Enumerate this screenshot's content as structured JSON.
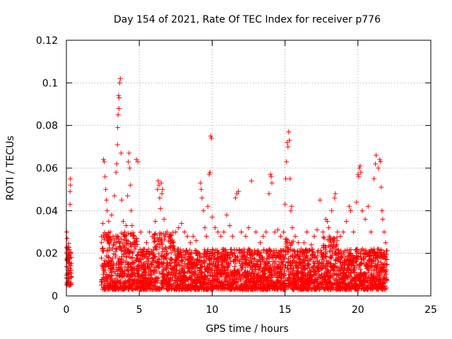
{
  "chart_data": {
    "type": "scatter",
    "title": "Day 154 of 2021, Rate Of TEC Index for receiver p776",
    "xlabel": "GPS time / hours",
    "ylabel": "ROTI / TECUs",
    "xlim": [
      0,
      25
    ],
    "ylim": [
      0,
      0.12
    ],
    "x_ticks": [
      0,
      5,
      10,
      15,
      20,
      25
    ],
    "y_ticks": [
      0,
      0.02,
      0.04,
      0.06,
      0.08,
      0.1,
      0.12
    ],
    "x_tick_labels": [
      "0",
      "5",
      "10",
      "15",
      "20",
      "25"
    ],
    "y_tick_labels": [
      "0",
      "0.02",
      "0.04",
      "0.06",
      "0.08",
      "0.1",
      "0.12"
    ],
    "grid": true,
    "marker": "+",
    "color": "#ff0000",
    "series": [
      {
        "name": "ROTI",
        "points": [
          [
            0.02,
            0.03
          ],
          [
            0.05,
            0.027
          ],
          [
            0.08,
            0.022
          ],
          [
            0.1,
            0.018
          ],
          [
            0.12,
            0.012
          ],
          [
            0.15,
            0.008
          ],
          [
            0.18,
            0.006
          ],
          [
            0.2,
            0.01
          ],
          [
            0.22,
            0.015
          ],
          [
            0.25,
            0.043
          ],
          [
            0.25,
            0.049
          ],
          [
            0.27,
            0.055
          ],
          [
            0.28,
            0.052
          ],
          [
            0.3,
            0.02
          ],
          [
            0.32,
            0.012
          ],
          [
            0.35,
            0.009
          ],
          [
            2.5,
            0.034
          ],
          [
            2.55,
            0.064
          ],
          [
            2.6,
            0.063
          ],
          [
            2.65,
            0.056
          ],
          [
            2.7,
            0.05
          ],
          [
            2.75,
            0.045
          ],
          [
            2.8,
            0.04
          ],
          [
            2.9,
            0.035
          ],
          [
            3.0,
            0.03
          ],
          [
            3.1,
            0.038
          ],
          [
            3.2,
            0.028
          ],
          [
            3.3,
            0.047
          ],
          [
            3.4,
            0.058
          ],
          [
            3.45,
            0.062
          ],
          [
            3.5,
            0.071
          ],
          [
            3.52,
            0.079
          ],
          [
            3.55,
            0.085
          ],
          [
            3.58,
            0.094
          ],
          [
            3.6,
            0.088
          ],
          [
            3.62,
            0.093
          ],
          [
            3.65,
            0.1
          ],
          [
            3.7,
            0.102
          ],
          [
            3.75,
            0.067
          ],
          [
            3.8,
            0.045
          ],
          [
            3.9,
            0.035
          ],
          [
            4.0,
            0.03
          ],
          [
            4.1,
            0.033
          ],
          [
            4.2,
            0.047
          ],
          [
            4.25,
            0.063
          ],
          [
            4.3,
            0.067
          ],
          [
            4.35,
            0.06
          ],
          [
            4.4,
            0.052
          ],
          [
            4.45,
            0.04
          ],
          [
            4.5,
            0.033
          ],
          [
            4.6,
            0.028
          ],
          [
            4.7,
            0.025
          ],
          [
            4.8,
            0.064
          ],
          [
            4.9,
            0.063
          ],
          [
            5.1,
            0.03
          ],
          [
            5.3,
            0.022
          ],
          [
            5.5,
            0.025
          ],
          [
            5.7,
            0.03
          ],
          [
            5.9,
            0.028
          ],
          [
            6.1,
            0.035
          ],
          [
            6.25,
            0.05
          ],
          [
            6.3,
            0.054
          ],
          [
            6.35,
            0.052
          ],
          [
            6.4,
            0.046
          ],
          [
            6.45,
            0.041
          ],
          [
            6.5,
            0.053
          ],
          [
            6.55,
            0.048
          ],
          [
            6.6,
            0.05
          ],
          [
            6.7,
            0.036
          ],
          [
            6.9,
            0.03
          ],
          [
            7.1,
            0.028
          ],
          [
            7.3,
            0.025
          ],
          [
            7.5,
            0.03
          ],
          [
            7.7,
            0.032
          ],
          [
            7.9,
            0.034
          ],
          [
            8.1,
            0.03
          ],
          [
            8.3,
            0.028
          ],
          [
            8.5,
            0.025
          ],
          [
            8.7,
            0.028
          ],
          [
            8.9,
            0.026
          ],
          [
            9.2,
            0.053
          ],
          [
            9.25,
            0.05
          ],
          [
            9.3,
            0.046
          ],
          [
            9.4,
            0.04
          ],
          [
            9.5,
            0.032
          ],
          [
            9.6,
            0.028
          ],
          [
            9.7,
            0.042
          ],
          [
            9.8,
            0.057
          ],
          [
            9.85,
            0.058
          ],
          [
            9.9,
            0.075
          ],
          [
            9.95,
            0.074
          ],
          [
            10.0,
            0.037
          ],
          [
            10.2,
            0.032
          ],
          [
            10.4,
            0.03
          ],
          [
            10.6,
            0.028
          ],
          [
            10.8,
            0.03
          ],
          [
            11.0,
            0.038
          ],
          [
            11.2,
            0.033
          ],
          [
            11.4,
            0.028
          ],
          [
            11.6,
            0.046
          ],
          [
            11.7,
            0.048
          ],
          [
            11.8,
            0.049
          ],
          [
            12.0,
            0.03
          ],
          [
            12.3,
            0.028
          ],
          [
            12.5,
            0.032
          ],
          [
            12.7,
            0.054
          ],
          [
            13.0,
            0.03
          ],
          [
            13.3,
            0.025
          ],
          [
            13.5,
            0.028
          ],
          [
            13.7,
            0.03
          ],
          [
            13.9,
            0.048
          ],
          [
            14.0,
            0.057
          ],
          [
            14.05,
            0.056
          ],
          [
            14.1,
            0.053
          ],
          [
            14.3,
            0.03
          ],
          [
            14.5,
            0.031
          ],
          [
            14.7,
            0.028
          ],
          [
            14.9,
            0.03
          ],
          [
            15.0,
            0.043
          ],
          [
            15.05,
            0.055
          ],
          [
            15.1,
            0.063
          ],
          [
            15.15,
            0.072
          ],
          [
            15.2,
            0.07
          ],
          [
            15.25,
            0.077
          ],
          [
            15.3,
            0.073
          ],
          [
            15.35,
            0.055
          ],
          [
            15.4,
            0.04
          ],
          [
            15.45,
            0.042
          ],
          [
            15.5,
            0.032
          ],
          [
            15.7,
            0.028
          ],
          [
            15.9,
            0.025
          ],
          [
            16.1,
            0.022
          ],
          [
            16.3,
            0.025
          ],
          [
            16.5,
            0.03
          ],
          [
            16.8,
            0.024
          ],
          [
            17.0,
            0.028
          ],
          [
            17.2,
            0.031
          ],
          [
            17.4,
            0.045
          ],
          [
            17.6,
            0.03
          ],
          [
            17.8,
            0.036
          ],
          [
            17.9,
            0.035
          ],
          [
            18.0,
            0.032
          ],
          [
            18.2,
            0.04
          ],
          [
            18.4,
            0.046
          ],
          [
            18.45,
            0.048
          ],
          [
            18.6,
            0.03
          ],
          [
            18.8,
            0.028
          ],
          [
            19.0,
            0.03
          ],
          [
            19.2,
            0.035
          ],
          [
            19.4,
            0.042
          ],
          [
            19.5,
            0.04
          ],
          [
            19.7,
            0.03
          ],
          [
            19.9,
            0.044
          ],
          [
            20.0,
            0.057
          ],
          [
            20.05,
            0.056
          ],
          [
            20.1,
            0.06
          ],
          [
            20.15,
            0.061
          ],
          [
            20.2,
            0.058
          ],
          [
            20.3,
            0.04
          ],
          [
            20.5,
            0.036
          ],
          [
            20.7,
            0.042
          ],
          [
            20.9,
            0.03
          ],
          [
            21.1,
            0.055
          ],
          [
            21.2,
            0.062
          ],
          [
            21.25,
            0.066
          ],
          [
            21.4,
            0.06
          ],
          [
            21.5,
            0.064
          ],
          [
            21.55,
            0.063
          ],
          [
            21.6,
            0.051
          ],
          [
            21.65,
            0.04
          ],
          [
            21.7,
            0.036
          ],
          [
            21.8,
            0.03
          ],
          [
            21.9,
            0.025
          ]
        ]
      }
    ],
    "dense_bands": [
      {
        "x_start": 0.0,
        "x_end": 0.35,
        "y_low": 0.005,
        "y_high": 0.025
      },
      {
        "x_start": 2.4,
        "x_end": 22.0,
        "y_low": 0.003,
        "y_high": 0.022
      }
    ],
    "dense_band_peaks": [
      {
        "x_from": 2.4,
        "x_to": 4.9,
        "y_high": 0.03
      },
      {
        "x_from": 6.0,
        "x_to": 7.5,
        "y_high": 0.03
      },
      {
        "x_from": 15.0,
        "x_to": 15.6,
        "y_high": 0.028
      },
      {
        "x_from": 17.6,
        "x_to": 18.6,
        "y_high": 0.028
      }
    ],
    "gaps": [
      {
        "x_start": 0.35,
        "x_end": 2.4
      },
      {
        "x_start": 13.3,
        "x_end": 13.55
      }
    ]
  }
}
